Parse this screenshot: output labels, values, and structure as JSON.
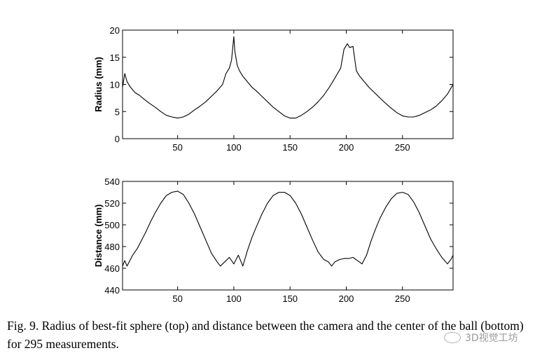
{
  "chart_data": [
    {
      "type": "line",
      "ylabel": "Radius (mm)",
      "xlabel": "",
      "xlim": [
        1,
        295
      ],
      "ylim": [
        0,
        20
      ],
      "xticks": [
        50,
        100,
        150,
        200,
        250
      ],
      "yticks": [
        0,
        5,
        10,
        15,
        20
      ],
      "series": [
        {
          "x": [
            1,
            3,
            5,
            8,
            12,
            16,
            20,
            25,
            30,
            35,
            40,
            45,
            50,
            55,
            60,
            65,
            70,
            75,
            80,
            85,
            90,
            93,
            96,
            98,
            100,
            101,
            103,
            105,
            108,
            112,
            116,
            120,
            125,
            130,
            135,
            140,
            145,
            150,
            155,
            160,
            165,
            170,
            175,
            180,
            185,
            190,
            195,
            198,
            201,
            203,
            206,
            209,
            212,
            216,
            220,
            225,
            230,
            235,
            240,
            245,
            250,
            255,
            260,
            265,
            270,
            275,
            280,
            285,
            290,
            295
          ],
          "values": [
            9.5,
            12.0,
            10.5,
            9.5,
            8.5,
            8.0,
            7.3,
            6.5,
            5.8,
            5.0,
            4.3,
            4.0,
            3.8,
            4.0,
            4.5,
            5.3,
            6.0,
            6.8,
            7.8,
            8.8,
            10.0,
            12.0,
            13.0,
            14.5,
            18.8,
            16.0,
            13.5,
            12.5,
            11.5,
            10.5,
            9.5,
            8.8,
            7.8,
            6.8,
            5.8,
            5.0,
            4.2,
            3.8,
            3.8,
            4.3,
            5.0,
            5.8,
            6.8,
            8.0,
            9.5,
            11.2,
            13.0,
            16.5,
            17.5,
            16.8,
            17.0,
            12.5,
            11.5,
            10.5,
            9.5,
            8.5,
            7.5,
            6.5,
            5.6,
            4.8,
            4.2,
            4.0,
            4.0,
            4.3,
            4.8,
            5.3,
            6.0,
            7.0,
            8.2,
            10.0
          ]
        }
      ]
    },
    {
      "type": "line",
      "ylabel": "Distance (mm)",
      "xlabel": "",
      "xlim": [
        1,
        295
      ],
      "ylim": [
        440,
        540
      ],
      "xticks": [
        50,
        100,
        150,
        200,
        250
      ],
      "yticks": [
        440,
        460,
        480,
        500,
        520,
        540
      ],
      "series": [
        {
          "x": [
            1,
            3,
            5,
            7,
            10,
            14,
            18,
            22,
            26,
            30,
            35,
            40,
            45,
            50,
            55,
            60,
            65,
            70,
            75,
            80,
            85,
            88,
            92,
            96,
            100,
            104,
            108,
            112,
            116,
            120,
            125,
            130,
            135,
            140,
            145,
            150,
            155,
            160,
            165,
            170,
            175,
            180,
            184,
            187,
            190,
            194,
            198,
            202,
            206,
            210,
            214,
            218,
            222,
            226,
            230,
            235,
            240,
            245,
            250,
            255,
            260,
            265,
            270,
            275,
            280,
            285,
            290,
            293,
            295
          ],
          "values": [
            462,
            467,
            462,
            466,
            472,
            478,
            486,
            494,
            503,
            511,
            520,
            527,
            530,
            531,
            528,
            520,
            510,
            498,
            486,
            474,
            466,
            462,
            466,
            470,
            464,
            472,
            462,
            476,
            488,
            498,
            510,
            520,
            527,
            530,
            530,
            527,
            520,
            510,
            498,
            486,
            475,
            468,
            466,
            462,
            466,
            468,
            469,
            469,
            470,
            467,
            464,
            472,
            485,
            496,
            506,
            516,
            524,
            529,
            530,
            528,
            521,
            511,
            499,
            487,
            478,
            470,
            464,
            468,
            472
          ]
        }
      ]
    }
  ],
  "caption": {
    "text": "Fig. 9.  Radius of best-fit sphere (top) and distance between the camera and the center of the ball (bottom) for 295 measurements."
  },
  "watermark": {
    "text": "3D视觉工坊"
  }
}
